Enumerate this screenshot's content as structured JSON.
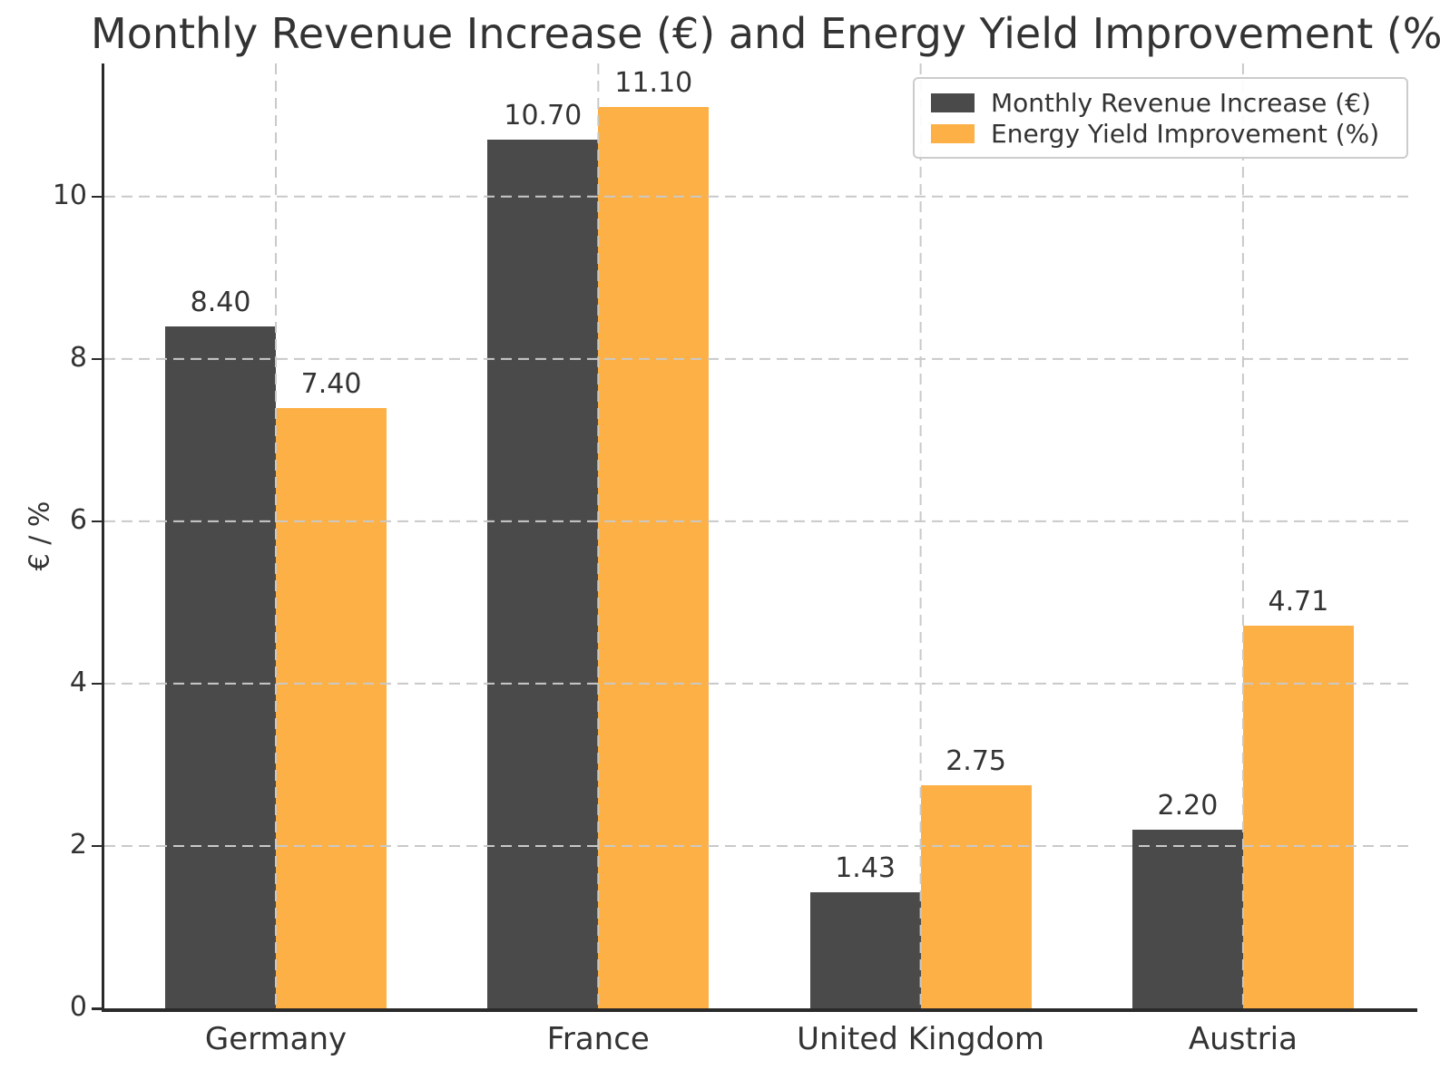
{
  "chart_data": {
    "type": "bar",
    "title": "Monthly Revenue Increase (€) and Energy Yield Improvement (%)",
    "ylabel": "€ / %",
    "xlabel": "",
    "categories": [
      "Germany",
      "France",
      "United Kingdom",
      "Austria"
    ],
    "series": [
      {
        "name": "Monthly Revenue Increase (€)",
        "color": "#4a4a4a",
        "values": [
          8.4,
          10.7,
          1.43,
          2.2
        ],
        "labels": [
          "8.40",
          "10.70",
          "1.43",
          "2.20"
        ]
      },
      {
        "name": "Energy Yield Improvement (%)",
        "color": "#fcb045",
        "values": [
          7.4,
          11.1,
          2.75,
          4.71
        ],
        "labels": [
          "7.40",
          "11.10",
          "2.75",
          "4.71"
        ]
      }
    ],
    "yticks": [
      0,
      2,
      4,
      6,
      8,
      10
    ],
    "ylim": [
      0,
      11.64
    ],
    "grid": true,
    "grid_style": "dashed",
    "legend_position": "upper right"
  },
  "style": {
    "background": "#ffffff",
    "text_color": "#333333",
    "spine_color": "#2a2a2a",
    "grid_color": "#c9c9c9"
  }
}
